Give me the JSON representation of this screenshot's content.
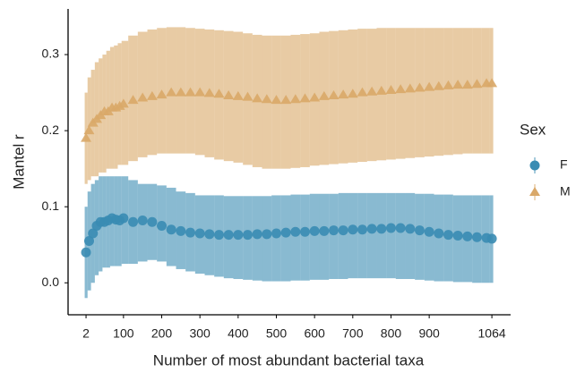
{
  "chart_data": {
    "type": "errorbar",
    "xlabel": "Number of most abundant bacterial taxa",
    "ylabel": "Mantel r",
    "legend_title": "Sex",
    "legend": "right",
    "x": [
      2,
      10,
      20,
      30,
      40,
      50,
      60,
      70,
      80,
      90,
      100,
      125,
      150,
      175,
      200,
      225,
      250,
      275,
      300,
      325,
      350,
      375,
      400,
      425,
      450,
      475,
      500,
      525,
      550,
      575,
      600,
      625,
      650,
      675,
      700,
      725,
      750,
      775,
      800,
      825,
      850,
      875,
      900,
      925,
      950,
      975,
      1000,
      1025,
      1050,
      1064
    ],
    "xlim": [
      -45,
      1113
    ],
    "xticks": [
      2,
      100,
      200,
      300,
      400,
      500,
      600,
      700,
      800,
      900,
      1064
    ],
    "ylim": [
      -0.042,
      0.36
    ],
    "yticks": [
      {
        "value": 0,
        "label": "0.0"
      },
      0.1,
      0.2,
      0.3
    ],
    "series": [
      {
        "name": "M",
        "marker": "triangle",
        "color": "#d9a868",
        "values": [
          0.19,
          0.2,
          0.21,
          0.215,
          0.22,
          0.225,
          0.225,
          0.23,
          0.23,
          0.232,
          0.235,
          0.24,
          0.243,
          0.245,
          0.247,
          0.25,
          0.25,
          0.25,
          0.25,
          0.249,
          0.248,
          0.246,
          0.245,
          0.244,
          0.242,
          0.241,
          0.24,
          0.24,
          0.241,
          0.242,
          0.243,
          0.245,
          0.246,
          0.247,
          0.248,
          0.25,
          0.251,
          0.252,
          0.253,
          0.254,
          0.255,
          0.256,
          0.257,
          0.258,
          0.259,
          0.26,
          0.26,
          0.261,
          0.262,
          0.262
        ],
        "upper": [
          0.25,
          0.27,
          0.28,
          0.29,
          0.295,
          0.3,
          0.305,
          0.31,
          0.312,
          0.315,
          0.318,
          0.325,
          0.33,
          0.333,
          0.335,
          0.336,
          0.336,
          0.335,
          0.334,
          0.333,
          0.332,
          0.331,
          0.33,
          0.328,
          0.326,
          0.325,
          0.325,
          0.325,
          0.326,
          0.327,
          0.328,
          0.33,
          0.331,
          0.332,
          0.333,
          0.334,
          0.334,
          0.335,
          0.335,
          0.335,
          0.335,
          0.335,
          0.335,
          0.335,
          0.335,
          0.335,
          0.335,
          0.335,
          0.335,
          0.335
        ],
        "lower": [
          0.13,
          0.135,
          0.14,
          0.14,
          0.145,
          0.145,
          0.15,
          0.15,
          0.15,
          0.155,
          0.155,
          0.16,
          0.165,
          0.168,
          0.17,
          0.17,
          0.17,
          0.17,
          0.168,
          0.165,
          0.162,
          0.16,
          0.158,
          0.155,
          0.152,
          0.15,
          0.15,
          0.15,
          0.151,
          0.152,
          0.154,
          0.155,
          0.156,
          0.157,
          0.158,
          0.159,
          0.16,
          0.161,
          0.162,
          0.163,
          0.164,
          0.165,
          0.166,
          0.167,
          0.168,
          0.169,
          0.17,
          0.17,
          0.17,
          0.17
        ]
      },
      {
        "name": "F",
        "marker": "circle",
        "color": "#3a8cb3",
        "values": [
          0.04,
          0.055,
          0.065,
          0.075,
          0.08,
          0.08,
          0.082,
          0.085,
          0.083,
          0.082,
          0.085,
          0.08,
          0.082,
          0.08,
          0.075,
          0.07,
          0.068,
          0.066,
          0.065,
          0.064,
          0.063,
          0.063,
          0.063,
          0.063,
          0.064,
          0.064,
          0.065,
          0.066,
          0.067,
          0.067,
          0.068,
          0.068,
          0.069,
          0.069,
          0.07,
          0.07,
          0.071,
          0.071,
          0.072,
          0.072,
          0.071,
          0.069,
          0.067,
          0.065,
          0.063,
          0.062,
          0.061,
          0.06,
          0.059,
          0.058
        ],
        "upper": [
          0.1,
          0.12,
          0.13,
          0.135,
          0.14,
          0.14,
          0.14,
          0.14,
          0.14,
          0.14,
          0.14,
          0.135,
          0.13,
          0.13,
          0.128,
          0.125,
          0.12,
          0.118,
          0.115,
          0.115,
          0.115,
          0.114,
          0.114,
          0.114,
          0.114,
          0.114,
          0.115,
          0.115,
          0.116,
          0.116,
          0.117,
          0.117,
          0.117,
          0.118,
          0.118,
          0.118,
          0.118,
          0.118,
          0.118,
          0.118,
          0.118,
          0.117,
          0.117,
          0.116,
          0.116,
          0.115,
          0.115,
          0.115,
          0.115,
          0.115
        ],
        "lower": [
          -0.02,
          -0.01,
          0.0,
          0.01,
          0.015,
          0.02,
          0.02,
          0.022,
          0.022,
          0.022,
          0.025,
          0.025,
          0.028,
          0.03,
          0.028,
          0.022,
          0.018,
          0.015,
          0.012,
          0.01,
          0.008,
          0.006,
          0.005,
          0.004,
          0.003,
          0.002,
          0.002,
          0.002,
          0.003,
          0.003,
          0.004,
          0.004,
          0.005,
          0.005,
          0.006,
          0.006,
          0.006,
          0.006,
          0.006,
          0.005,
          0.005,
          0.004,
          0.003,
          0.002,
          0.002,
          0.001,
          0.001,
          0.0,
          0.0,
          0.0
        ]
      }
    ]
  }
}
